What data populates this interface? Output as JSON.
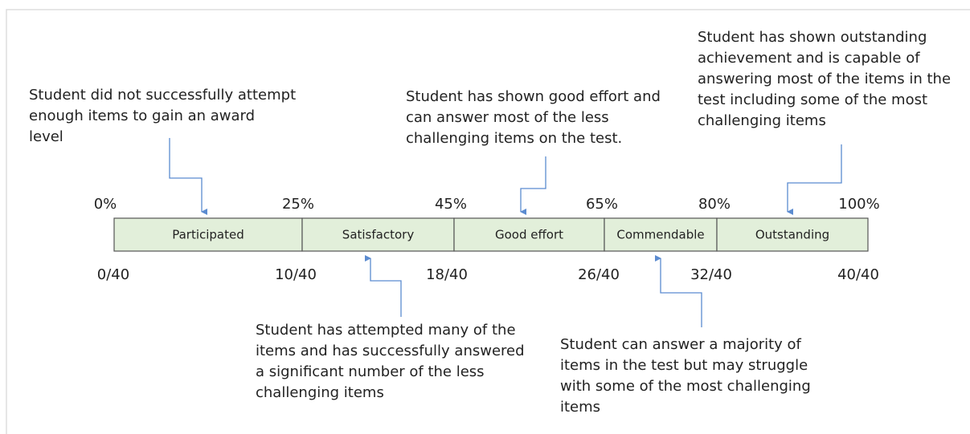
{
  "scale": {
    "segments": [
      "Participated",
      "Satisfactory",
      "Good effort",
      "Commendable",
      "Outstanding"
    ],
    "percent_labels": [
      "0%",
      "25%",
      "45%",
      "65%",
      "80%",
      "100%"
    ],
    "score_labels": [
      "0/40",
      "10/40",
      "18/40",
      "26/40",
      "32/40",
      "40/40"
    ]
  },
  "annotations": [
    {
      "lines": [
        "Student did not successfully attempt",
        "enough items to gain an award",
        "level"
      ]
    },
    {
      "lines": [
        "Student has attempted many of the",
        "items and has successfully answered",
        "a significant number of the less",
        "challenging items"
      ]
    },
    {
      "lines": [
        "Student has shown good effort and",
        "can answer most of the less",
        "challenging items on the test."
      ]
    },
    {
      "lines": [
        "Student can answer a majority of",
        "items in the test but may struggle",
        "with some of the most challenging",
        "items"
      ]
    },
    {
      "lines": [
        "Student has shown outstanding",
        "achievement and is capable of",
        "answering most of the items in the",
        "test including some of the most",
        "challenging items"
      ]
    }
  ]
}
